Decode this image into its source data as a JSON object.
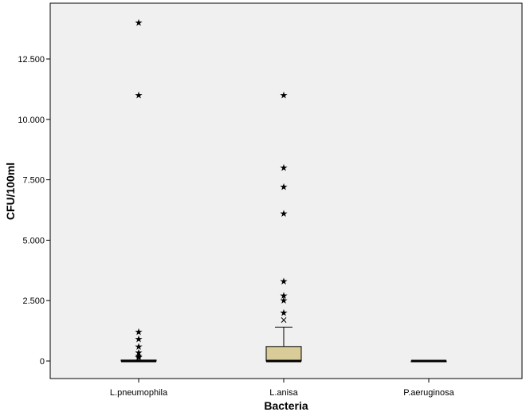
{
  "chart_data": {
    "type": "boxplot",
    "xlabel": "Bacteria",
    "ylabel": "CFU/100ml",
    "ylim": [
      -700,
      14800
    ],
    "yticks": [
      {
        "value": 0,
        "label": "0"
      },
      {
        "value": 2500,
        "label": "2.500"
      },
      {
        "value": 5000,
        "label": "5.000"
      },
      {
        "value": 7500,
        "label": "7.500"
      },
      {
        "value": 10000,
        "label": "10.000"
      },
      {
        "value": 12500,
        "label": "12.500"
      }
    ],
    "grid": false,
    "colors": {
      "plot_background": "#f0f0f0",
      "box_fill": "#d9cc99",
      "line": "#000000"
    },
    "categories": [
      "L.pneumophila",
      "L.anisa",
      "P.aeruginosa"
    ],
    "boxes": [
      {
        "category": "L.pneumophila",
        "min": 0,
        "q1": 0,
        "median": 0,
        "q3": 40,
        "max": 100,
        "outliers_extreme": [
          14000,
          11000,
          1200,
          900,
          600,
          350,
          200,
          150
        ],
        "outliers_mild": []
      },
      {
        "category": "L.anisa",
        "min": 0,
        "q1": 0,
        "median": 0,
        "q3": 600,
        "max": 1400,
        "outliers_extreme": [
          11000,
          8000,
          7200,
          6100,
          3300,
          2700,
          2500,
          2000
        ],
        "outliers_mild": [
          1700
        ]
      },
      {
        "category": "P.aeruginosa",
        "min": 0,
        "q1": 0,
        "median": 0,
        "q3": 0,
        "max": 0,
        "outliers_extreme": [],
        "outliers_mild": []
      }
    ],
    "markers": {
      "extreme": "★",
      "mild": "×"
    }
  }
}
